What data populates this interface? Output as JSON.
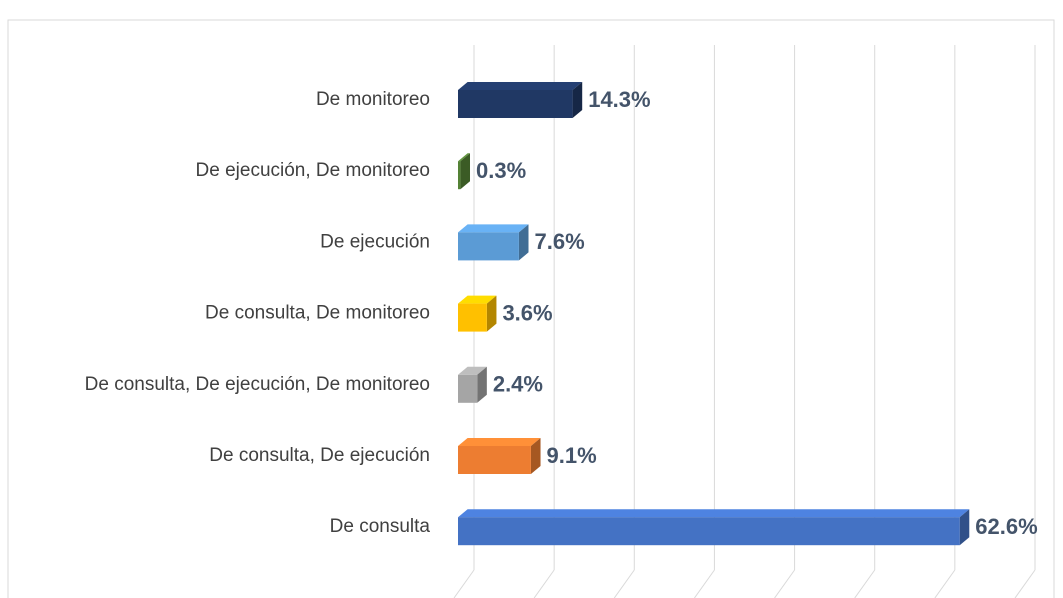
{
  "chart_data": {
    "type": "bar3d",
    "categories": [
      "De monitoreo",
      "De ejecución, De monitoreo",
      "De ejecución",
      "De consulta, De monitoreo",
      "De consulta, De ejecución, De monitoreo",
      "De consulta, De ejecución",
      "De consulta"
    ],
    "values": [
      14.3,
      0.3,
      7.6,
      3.6,
      2.4,
      9.1,
      62.6
    ],
    "value_labels": [
      "14.3%",
      "0.3%",
      "7.6%",
      "3.6%",
      "2.4%",
      "9.1%",
      "62.6%"
    ],
    "colors": [
      "#203864",
      "#548235",
      "#5b9bd5",
      "#ffc000",
      "#a5a5a5",
      "#ed7d31",
      "#4472c4"
    ],
    "xlim": [
      0,
      70
    ],
    "xticks": [
      0,
      10,
      20,
      30,
      40,
      50,
      60,
      70
    ],
    "grid": true
  }
}
